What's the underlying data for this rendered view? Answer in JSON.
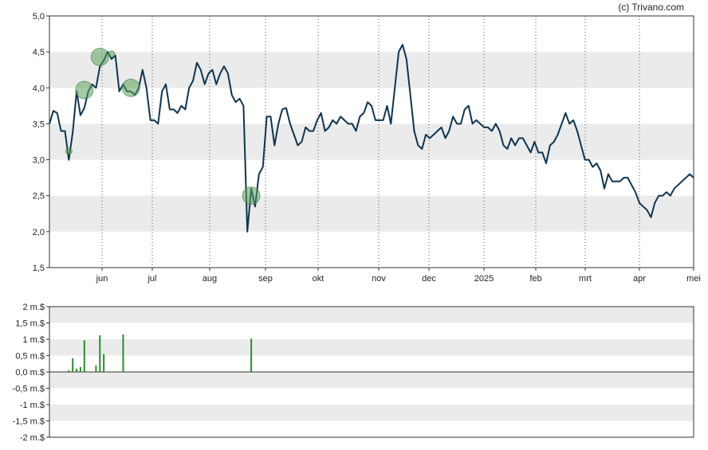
{
  "credit": "(c) Trivano.com",
  "chart_data": [
    {
      "type": "line",
      "ylim": [
        1.5,
        5.0
      ],
      "y_ticks": [
        "1,5",
        "2,0",
        "2,5",
        "3,0",
        "3,5",
        "4,0",
        "4,5",
        "5,0"
      ],
      "x_tick_labels": [
        "jun",
        "jul",
        "aug",
        "sep",
        "okt",
        "nov",
        "dec",
        "2025",
        "feb",
        "mrt",
        "apr",
        "mei"
      ],
      "grid": "horizontal bands + dotted month lines",
      "colors": {
        "line": "#0e3551",
        "marker": "#5aa05a",
        "band": "#ebebeb"
      },
      "series": [
        {
          "values": [
            3.5,
            3.68,
            3.65,
            3.4,
            3.4,
            3.0,
            3.38,
            3.95,
            3.62,
            3.72,
            3.95,
            4.05,
            4.0,
            4.3,
            4.38,
            4.5,
            4.4,
            4.45,
            3.95,
            4.05,
            3.95,
            3.95,
            3.9,
            4.0,
            4.25,
            4.0,
            3.55,
            3.55,
            3.5,
            3.95,
            4.05,
            3.7,
            3.7,
            3.65,
            3.75,
            3.7,
            4.0,
            4.1,
            4.35,
            4.25,
            4.05,
            4.2,
            4.25,
            4.05,
            4.2,
            4.3,
            4.2,
            3.9,
            3.8,
            3.85,
            3.75,
            2.0,
            2.6,
            2.35,
            2.8,
            2.9,
            3.6,
            3.6,
            3.2,
            3.5,
            3.7,
            3.72,
            3.5,
            3.35,
            3.2,
            3.25,
            3.45,
            3.4,
            3.4,
            3.55,
            3.65,
            3.4,
            3.45,
            3.55,
            3.5,
            3.6,
            3.55,
            3.5,
            3.5,
            3.4,
            3.6,
            3.65,
            3.8,
            3.75,
            3.55,
            3.55,
            3.55,
            3.75,
            3.5,
            4.0,
            4.5,
            4.6,
            4.4,
            3.9,
            3.4,
            3.2,
            3.15,
            3.35,
            3.3,
            3.35,
            3.4,
            3.45,
            3.3,
            3.4,
            3.6,
            3.5,
            3.5,
            3.7,
            3.75,
            3.5,
            3.55,
            3.5,
            3.45,
            3.45,
            3.4,
            3.5,
            3.4,
            3.2,
            3.15,
            3.3,
            3.2,
            3.3,
            3.3,
            3.2,
            3.1,
            3.25,
            3.1,
            3.1,
            2.95,
            3.2,
            3.25,
            3.35,
            3.5,
            3.65,
            3.5,
            3.55,
            3.4,
            3.2,
            3.0,
            3.0,
            2.9,
            2.95,
            2.85,
            2.6,
            2.8,
            2.7,
            2.7,
            2.7,
            2.75,
            2.75,
            2.65,
            2.55,
            2.4,
            2.35,
            2.3,
            2.2,
            2.4,
            2.5,
            2.5,
            2.55,
            2.5,
            2.6,
            2.65,
            2.7,
            2.75,
            2.8,
            2.75
          ]
        }
      ],
      "markers": [
        {
          "index": 5,
          "value": 3.12,
          "size": "small"
        },
        {
          "index": 9,
          "value": 3.97,
          "size": "large"
        },
        {
          "index": 13,
          "value": 4.43,
          "size": "large"
        },
        {
          "index": 16,
          "value": 4.47,
          "size": "small"
        },
        {
          "index": 21,
          "value": 4.0,
          "size": "large"
        },
        {
          "index": 52,
          "value": 2.5,
          "size": "large"
        }
      ]
    },
    {
      "type": "bar",
      "ylim": [
        -2,
        2
      ],
      "y_ticks": [
        "-2 m.$",
        "-1,5 m.$",
        "-1 m.$",
        "-0,5 m.$",
        "0,0 m.$",
        "0,5 m.$",
        "1 m.$",
        "1,5 m.$",
        "2 m.$"
      ],
      "colors": {
        "bar": "#2e8b2e",
        "band": "#ebebeb"
      },
      "bars": [
        {
          "index": 5,
          "value": 0.05
        },
        {
          "index": 6,
          "value": 0.42
        },
        {
          "index": 7,
          "value": 0.1
        },
        {
          "index": 8,
          "value": 0.15
        },
        {
          "index": 9,
          "value": 0.97
        },
        {
          "index": 12,
          "value": 0.2
        },
        {
          "index": 13,
          "value": 1.12
        },
        {
          "index": 14,
          "value": 0.55
        },
        {
          "index": 19,
          "value": 1.15
        },
        {
          "index": 52,
          "value": 1.02
        },
        {
          "index": 103,
          "value": 0.02
        }
      ]
    }
  ]
}
